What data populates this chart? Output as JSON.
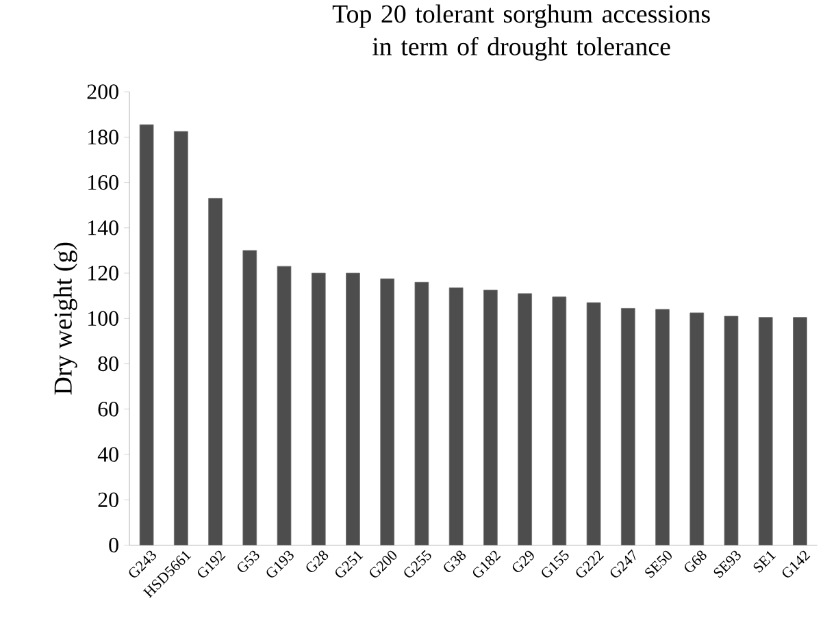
{
  "chart_data": {
    "type": "bar",
    "title": "Top 20 tolerant sorghum accessions in term of drought tolerance",
    "ylabel": "Dry weight (g)",
    "categories": [
      "G243",
      "HSD5661",
      "G192",
      "G53",
      "G193",
      "G28",
      "G251",
      "G200",
      "G255",
      "G38",
      "G182",
      "G29",
      "G155",
      "G222",
      "G247",
      "SE50",
      "G68",
      "SE93",
      "SE1",
      "G142"
    ],
    "values": [
      185.5,
      182.5,
      153,
      130,
      123,
      120,
      120,
      117.5,
      116,
      113.5,
      112.5,
      111,
      109.5,
      107,
      104.5,
      104,
      102.5,
      101,
      100.5,
      100.5
    ],
    "color": "#4d4d4d",
    "ylim": [
      0,
      200
    ],
    "yticks": [
      0,
      20,
      40,
      60,
      80,
      100,
      120,
      140,
      160,
      180,
      200
    ]
  }
}
